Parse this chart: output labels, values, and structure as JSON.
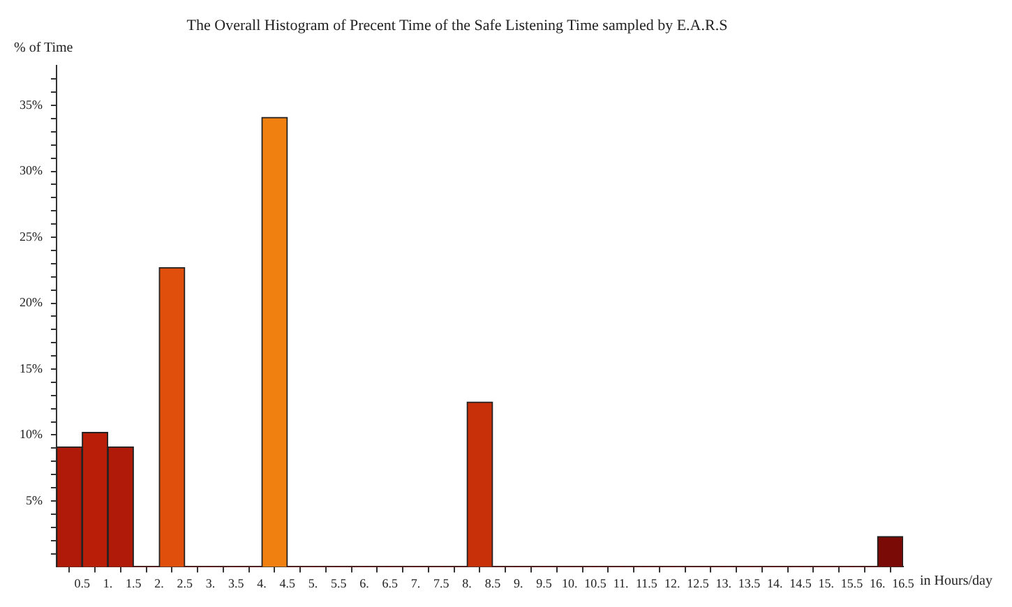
{
  "chart_data": {
    "type": "histogram",
    "title": "The Overall Histogram of Precent Time of the Safe Listening Time sampled by E.A.R.S",
    "xlabel": "in Hours/day",
    "ylabel": "% of Time",
    "bins": [
      0,
      0.5,
      1,
      1.5,
      2,
      2.5,
      3,
      3.5,
      4,
      4.5,
      5,
      5.5,
      6,
      6.5,
      7,
      7.5,
      8,
      8.5,
      9,
      9.5,
      10,
      10.5,
      11,
      11.5,
      12,
      12.5,
      13,
      13.5,
      14,
      14.5,
      15,
      15.5,
      16,
      16.5
    ],
    "values": [
      9.1,
      10.2,
      9.1,
      0,
      22.7,
      0,
      0,
      0,
      34.1,
      0,
      0,
      0,
      0,
      0,
      0,
      0,
      12.5,
      0,
      0,
      0,
      0,
      0,
      0,
      0,
      0,
      0,
      0,
      0,
      0,
      0,
      0,
      0,
      2.3
    ],
    "colors": [
      "#b01a08",
      "#b81e08",
      "#b01a08",
      "#800000",
      "#e0500c",
      "#800000",
      "#800000",
      "#800000",
      "#f08010",
      "#800000",
      "#800000",
      "#800000",
      "#800000",
      "#800000",
      "#800000",
      "#800000",
      "#c8300a",
      "#800000",
      "#800000",
      "#800000",
      "#800000",
      "#800000",
      "#800000",
      "#800000",
      "#800000",
      "#800000",
      "#800000",
      "#800000",
      "#800000",
      "#800000",
      "#800000",
      "#800000",
      "#7a0a05"
    ],
    "xlim": [
      0,
      16.5
    ],
    "xticks": [
      {
        "value": 0,
        "label": null
      },
      0.5,
      {
        "value": 1,
        "label": "1."
      },
      1.5,
      {
        "value": 2,
        "label": "2."
      },
      2.5,
      {
        "value": 3,
        "label": "3."
      },
      3.5,
      {
        "value": 4,
        "label": "4."
      },
      4.5,
      {
        "value": 5,
        "label": "5."
      },
      5.5,
      {
        "value": 6,
        "label": "6."
      },
      6.5,
      {
        "value": 7,
        "label": "7."
      },
      7.5,
      {
        "value": 8,
        "label": "8."
      },
      8.5,
      {
        "value": 9,
        "label": "9."
      },
      9.5,
      {
        "value": 10,
        "label": "10."
      },
      10.5,
      {
        "value": 11,
        "label": "11."
      },
      11.5,
      {
        "value": 12,
        "label": "12."
      },
      12.5,
      {
        "value": 13,
        "label": "13."
      },
      13.5,
      {
        "value": 14,
        "label": "14."
      },
      14.5,
      {
        "value": 15,
        "label": "15."
      },
      15.5,
      {
        "value": 16,
        "label": "16."
      },
      16.5
    ],
    "ylim": [
      0,
      38
    ],
    "yticks": [
      {
        "value": 1,
        "label": null
      },
      {
        "value": 2,
        "label": null
      },
      {
        "value": 3,
        "label": null
      },
      {
        "value": 4,
        "label": null
      },
      {
        "value": 5,
        "label": "5%"
      },
      {
        "value": 6,
        "label": null
      },
      {
        "value": 7,
        "label": null
      },
      {
        "value": 8,
        "label": null
      },
      {
        "value": 9,
        "label": null
      },
      {
        "value": 10,
        "label": "10%"
      },
      {
        "value": 11,
        "label": null
      },
      {
        "value": 12,
        "label": null
      },
      {
        "value": 13,
        "label": null
      },
      {
        "value": 14,
        "label": null
      },
      {
        "value": 15,
        "label": "15%"
      },
      {
        "value": 16,
        "label": null
      },
      {
        "value": 17,
        "label": null
      },
      {
        "value": 18,
        "label": null
      },
      {
        "value": 19,
        "label": null
      },
      {
        "value": 20,
        "label": "20%"
      },
      {
        "value": 21,
        "label": null
      },
      {
        "value": 22,
        "label": null
      },
      {
        "value": 23,
        "label": null
      },
      {
        "value": 24,
        "label": null
      },
      {
        "value": 25,
        "label": "25%"
      },
      {
        "value": 26,
        "label": null
      },
      {
        "value": 27,
        "label": null
      },
      {
        "value": 28,
        "label": null
      },
      {
        "value": 29,
        "label": null
      },
      {
        "value": 30,
        "label": "30%"
      },
      {
        "value": 31,
        "label": null
      },
      {
        "value": 32,
        "label": null
      },
      {
        "value": 33,
        "label": null
      },
      {
        "value": 34,
        "label": null
      },
      {
        "value": 35,
        "label": "35%"
      },
      {
        "value": 36,
        "label": null
      },
      {
        "value": 37,
        "label": null
      }
    ],
    "grid": false,
    "legend": false
  }
}
